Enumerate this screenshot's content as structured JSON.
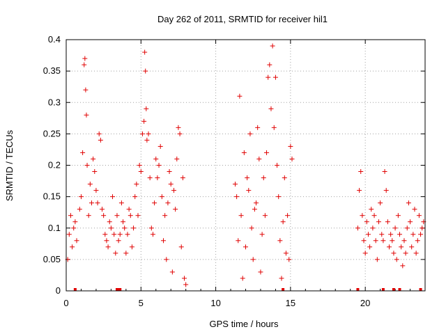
{
  "chart_data": {
    "type": "scatter",
    "title": "Day 262 of 2011, SRMTID for receiver hil1",
    "xlabel": "GPS time / hours",
    "ylabel": "SRMTID / TECUs",
    "xlim": [
      0,
      24
    ],
    "ylim": [
      0,
      0.4
    ],
    "xticks": [
      0,
      5,
      10,
      15,
      20
    ],
    "xtick_labels": [
      "0",
      "5",
      "10",
      "15",
      "20"
    ],
    "yticks": [
      0,
      0.05,
      0.1,
      0.15,
      0.2,
      0.25,
      0.3,
      0.35,
      0.4
    ],
    "ytick_labels": [
      "0",
      "0.05",
      "0.1",
      "0.15",
      "0.2",
      "0.25",
      "0.3",
      "0.35",
      "0.4"
    ],
    "grid": true,
    "marker": "+",
    "color": "#e00000",
    "series": [
      {
        "name": "SRMTID",
        "x": [
          0.1,
          0.2,
          0.3,
          0.4,
          0.5,
          0.6,
          0.7,
          0.9,
          1.0,
          1.1,
          1.2,
          1.25,
          1.3,
          1.35,
          1.4,
          1.5,
          1.6,
          1.7,
          1.8,
          1.9,
          2.0,
          2.1,
          2.2,
          2.3,
          2.4,
          2.5,
          2.6,
          2.7,
          2.8,
          2.9,
          3.0,
          3.1,
          3.2,
          3.3,
          3.4,
          3.5,
          3.6,
          3.7,
          3.8,
          3.9,
          4.0,
          4.1,
          4.2,
          4.3,
          4.4,
          4.5,
          4.6,
          4.7,
          4.8,
          4.9,
          5.0,
          5.1,
          5.2,
          5.25,
          5.3,
          5.35,
          5.4,
          5.5,
          5.6,
          5.7,
          5.8,
          5.9,
          6.0,
          6.1,
          6.2,
          6.3,
          6.4,
          6.5,
          6.6,
          6.7,
          6.8,
          6.9,
          7.0,
          7.1,
          7.2,
          7.3,
          7.4,
          7.5,
          7.6,
          7.7,
          7.8,
          7.9,
          8.0,
          11.3,
          11.4,
          11.5,
          11.6,
          11.7,
          11.8,
          11.9,
          12.0,
          12.1,
          12.2,
          12.3,
          12.4,
          12.5,
          12.6,
          12.7,
          12.8,
          12.9,
          13.0,
          13.1,
          13.2,
          13.3,
          13.4,
          13.5,
          13.6,
          13.7,
          13.8,
          13.9,
          14.0,
          14.1,
          14.2,
          14.3,
          14.4,
          14.5,
          14.6,
          14.7,
          14.8,
          14.9,
          15.0,
          15.1,
          19.5,
          19.6,
          19.7,
          19.8,
          19.9,
          20.0,
          20.1,
          20.2,
          20.3,
          20.4,
          20.5,
          20.6,
          20.7,
          20.8,
          20.9,
          21.0,
          21.1,
          21.2,
          21.3,
          21.4,
          21.5,
          21.6,
          21.7,
          21.8,
          21.9,
          22.0,
          22.1,
          22.2,
          22.3,
          22.4,
          22.5,
          22.6,
          22.7,
          22.8,
          22.9,
          23.0,
          23.1,
          23.2,
          23.3,
          23.4,
          23.5,
          23.6,
          23.7,
          23.8,
          23.9
        ],
        "y": [
          0.05,
          0.09,
          0.12,
          0.07,
          0.1,
          0.11,
          0.08,
          0.13,
          0.15,
          0.22,
          0.36,
          0.37,
          0.32,
          0.28,
          0.2,
          0.12,
          0.17,
          0.14,
          0.21,
          0.19,
          0.16,
          0.14,
          0.25,
          0.24,
          0.13,
          0.12,
          0.09,
          0.08,
          0.07,
          0.11,
          0.1,
          0.15,
          0.09,
          0.06,
          0.12,
          0.08,
          0.09,
          0.14,
          0.11,
          0.1,
          0.06,
          0.09,
          0.13,
          0.12,
          0.07,
          0.1,
          0.15,
          0.17,
          0.12,
          0.2,
          0.19,
          0.25,
          0.27,
          0.38,
          0.35,
          0.29,
          0.24,
          0.25,
          0.18,
          0.1,
          0.09,
          0.14,
          0.21,
          0.18,
          0.2,
          0.23,
          0.15,
          0.08,
          0.12,
          0.05,
          0.14,
          0.19,
          0.17,
          0.03,
          0.16,
          0.13,
          0.21,
          0.26,
          0.25,
          0.07,
          0.18,
          0.02,
          0.01,
          0.17,
          0.15,
          0.08,
          0.31,
          0.12,
          0.02,
          0.22,
          0.07,
          0.18,
          0.16,
          0.25,
          0.1,
          0.05,
          0.13,
          0.14,
          0.26,
          0.21,
          0.03,
          0.09,
          0.18,
          0.12,
          0.22,
          0.34,
          0.36,
          0.29,
          0.39,
          0.26,
          0.34,
          0.2,
          0.15,
          0.08,
          0.02,
          0.11,
          0.18,
          0.06,
          0.12,
          0.05,
          0.23,
          0.21,
          0.1,
          0.16,
          0.19,
          0.12,
          0.08,
          0.06,
          0.11,
          0.09,
          0.07,
          0.13,
          0.1,
          0.12,
          0.08,
          0.05,
          0.11,
          0.14,
          0.09,
          0.08,
          0.19,
          0.16,
          0.11,
          0.07,
          0.09,
          0.08,
          0.06,
          0.1,
          0.05,
          0.12,
          0.09,
          0.07,
          0.04,
          0.08,
          0.06,
          0.1,
          0.14,
          0.11,
          0.07,
          0.09,
          0.13,
          0.06,
          0.08,
          0.12,
          0.09,
          0.1,
          0.11
        ],
        "rug_x": [
          0.6,
          3.4,
          3.5,
          3.6,
          14.5,
          19.5,
          21.2,
          21.9,
          22.3,
          23.7
        ]
      }
    ]
  }
}
